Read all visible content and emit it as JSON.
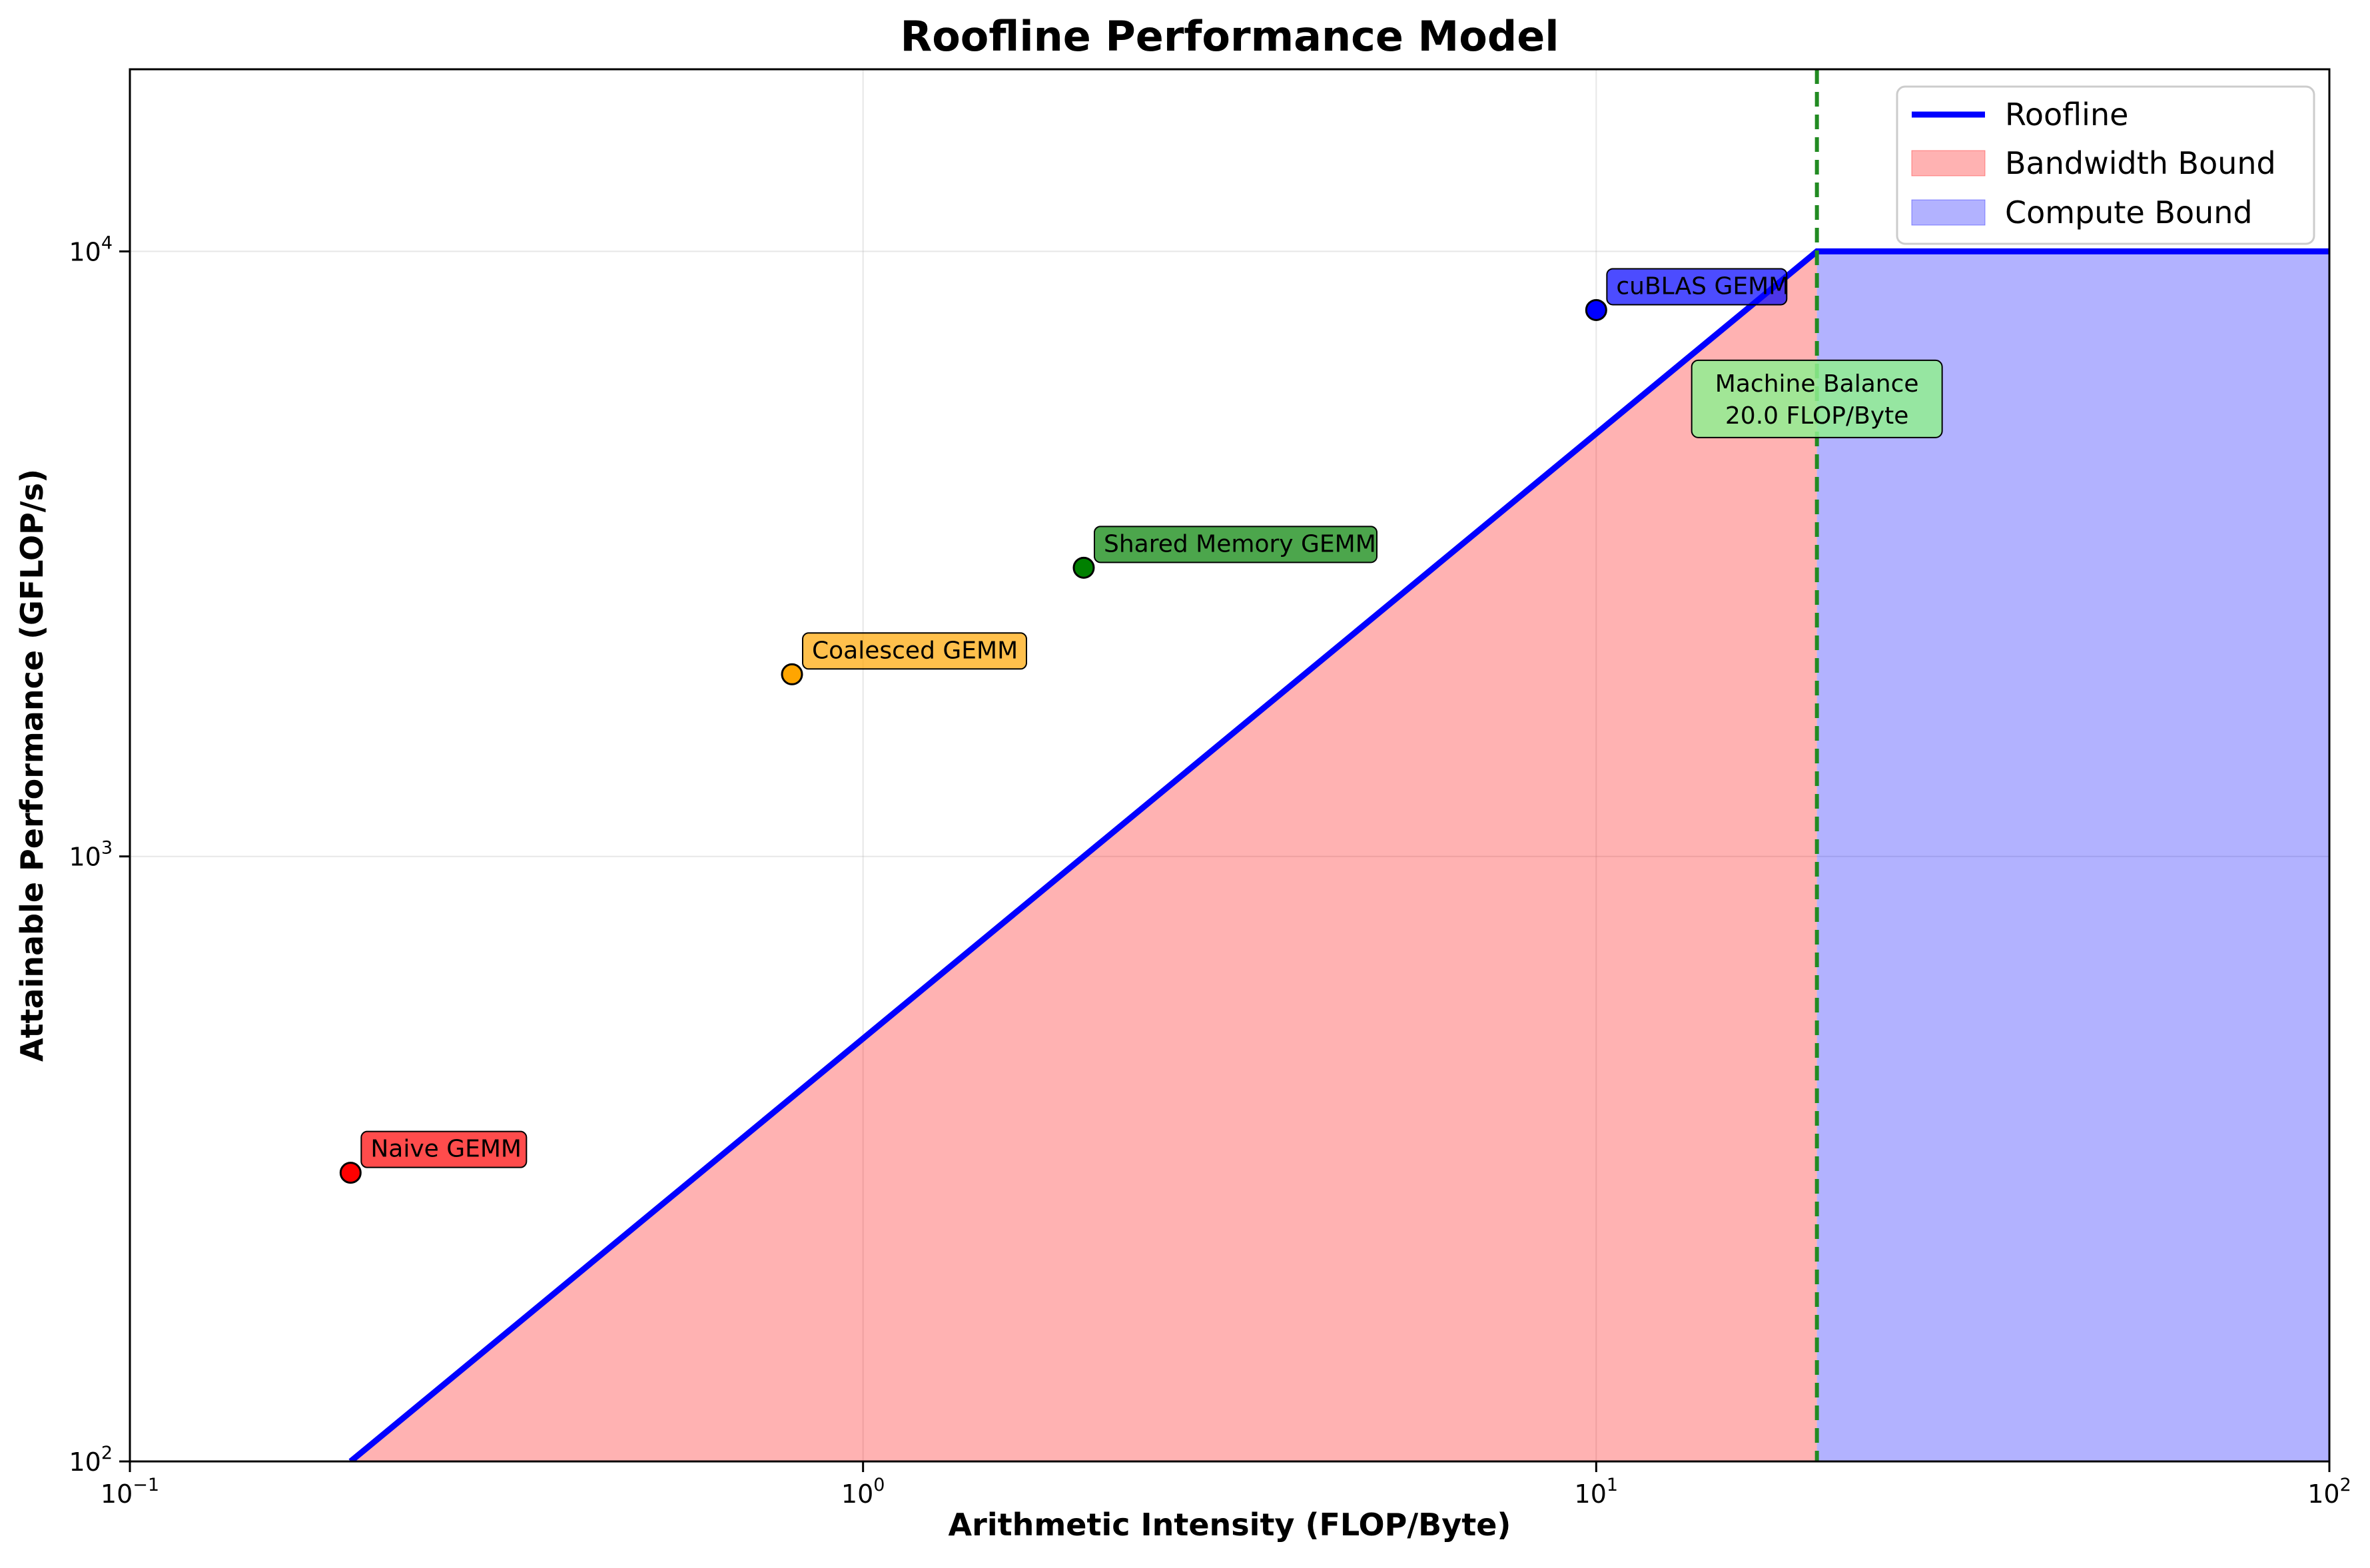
{
  "chart_data": {
    "type": "line",
    "title": "Roofline Performance Model",
    "xlabel": "Arithmetic Intensity (FLOP/Byte)",
    "ylabel": "Attainable Performance (GFLOP/s)",
    "xscale": "log",
    "yscale": "log",
    "xlim": [
      0.1,
      100
    ],
    "ylim": [
      100,
      20000
    ],
    "grid": true,
    "legend_position": "top-right",
    "x_ticks": [
      {
        "value": 0.1,
        "base": "10",
        "exp": "−1"
      },
      {
        "value": 1,
        "base": "10",
        "exp": "0"
      },
      {
        "value": 10,
        "base": "10",
        "exp": "1"
      },
      {
        "value": 100,
        "base": "10",
        "exp": "2"
      }
    ],
    "y_ticks": [
      {
        "value": 100,
        "base": "10",
        "exp": "2"
      },
      {
        "value": 1000,
        "base": "10",
        "exp": "3"
      },
      {
        "value": 10000,
        "base": "10",
        "exp": "4"
      }
    ],
    "roofline": {
      "name": "Roofline",
      "color": "#0000ff",
      "points": [
        [
          0.2,
          100
        ],
        [
          20,
          10000
        ],
        [
          100,
          10000
        ]
      ]
    },
    "regions": [
      {
        "name": "Bandwidth Bound",
        "color": "#ff0000",
        "opacity": 0.3
      },
      {
        "name": "Compute Bound",
        "color": "#0000ff",
        "opacity": 0.3
      }
    ],
    "machine_balance": {
      "x": 20,
      "color": "#228B22",
      "label_line1": "Machine Balance",
      "label_line2": "20.0 FLOP/Byte",
      "label_y": 5000
    },
    "points": [
      {
        "name": "Naive GEMM",
        "x": 0.2,
        "y": 300,
        "color": "#ff0000"
      },
      {
        "name": "Coalesced GEMM",
        "x": 0.8,
        "y": 2000,
        "color": "#ffa500"
      },
      {
        "name": "Shared Memory GEMM",
        "x": 2,
        "y": 3000,
        "color": "#008000"
      },
      {
        "name": "cuBLAS GEMM",
        "x": 10,
        "y": 8000,
        "color": "#0000ff"
      }
    ]
  }
}
